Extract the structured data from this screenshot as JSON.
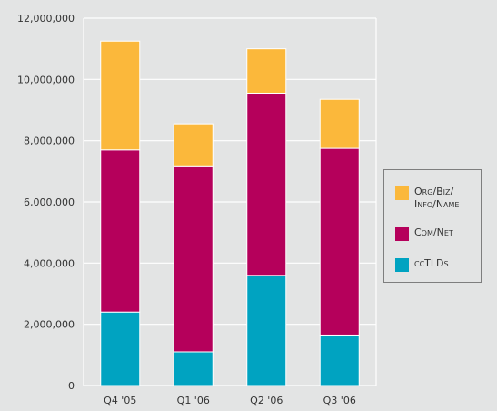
{
  "chart_data": {
    "type": "bar",
    "stacked": true,
    "categories": [
      "Q4 '05",
      "Q1 '06",
      "Q2 '06",
      "Q3 '06"
    ],
    "series": [
      {
        "name": "ccTLDs",
        "color": "#00a3c1",
        "values": [
          2400000,
          1100000,
          3600000,
          1650000
        ]
      },
      {
        "name": "Com/Net",
        "color": "#b5005b",
        "values": [
          5300000,
          6050000,
          5950000,
          6100000
        ]
      },
      {
        "name": "Org/Biz/\nInfo/Name",
        "color": "#fbb83b",
        "values": [
          3550000,
          1400000,
          1450000,
          1600000
        ]
      }
    ],
    "ylim": [
      0,
      12000000
    ],
    "yticks": [
      "0",
      "2,000,000",
      "4,000,000",
      "6,000,000",
      "8,000,000",
      "10,000,000",
      "12,000,000"
    ],
    "grid": true,
    "legend_position": "right"
  },
  "legend": {
    "items": [
      {
        "label": "Org/Biz/\nInfo/Name",
        "color": "#fbb83b"
      },
      {
        "label": "Com/Net",
        "color": "#b5005b"
      },
      {
        "label": "ccTLDs",
        "color": "#00a3c1"
      }
    ]
  }
}
